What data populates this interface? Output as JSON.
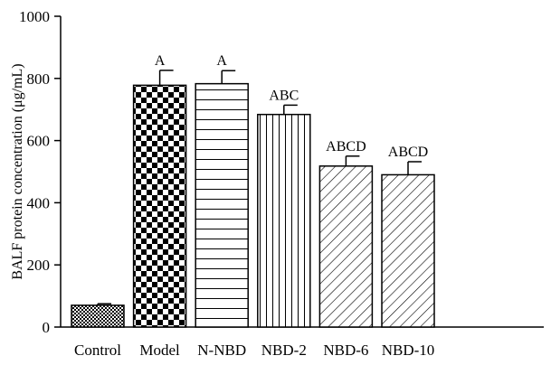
{
  "chart_data": {
    "type": "bar",
    "title": "",
    "xlabel": "",
    "ylabel": "BALF protein concentration (μg/mL)",
    "ylim": [
      0,
      1000
    ],
    "yticks": [
      0,
      200,
      400,
      600,
      800,
      1000
    ],
    "categories": [
      "Control",
      "Model",
      "N-NBD",
      "NBD-2",
      "NBD-6",
      "NBD-10"
    ],
    "values": [
      70,
      778,
      783,
      684,
      518,
      490
    ],
    "errors": [
      5,
      48,
      42,
      30,
      32,
      42
    ],
    "significance_labels": [
      "",
      "A",
      "A",
      "ABC",
      "ABCD",
      "ABCD"
    ],
    "patterns": [
      "small-checker",
      "large-checker",
      "horizontal-lines",
      "vertical-lines",
      "diagonal-lines",
      "diagonal-lines"
    ],
    "grid": false,
    "legend": "none"
  }
}
